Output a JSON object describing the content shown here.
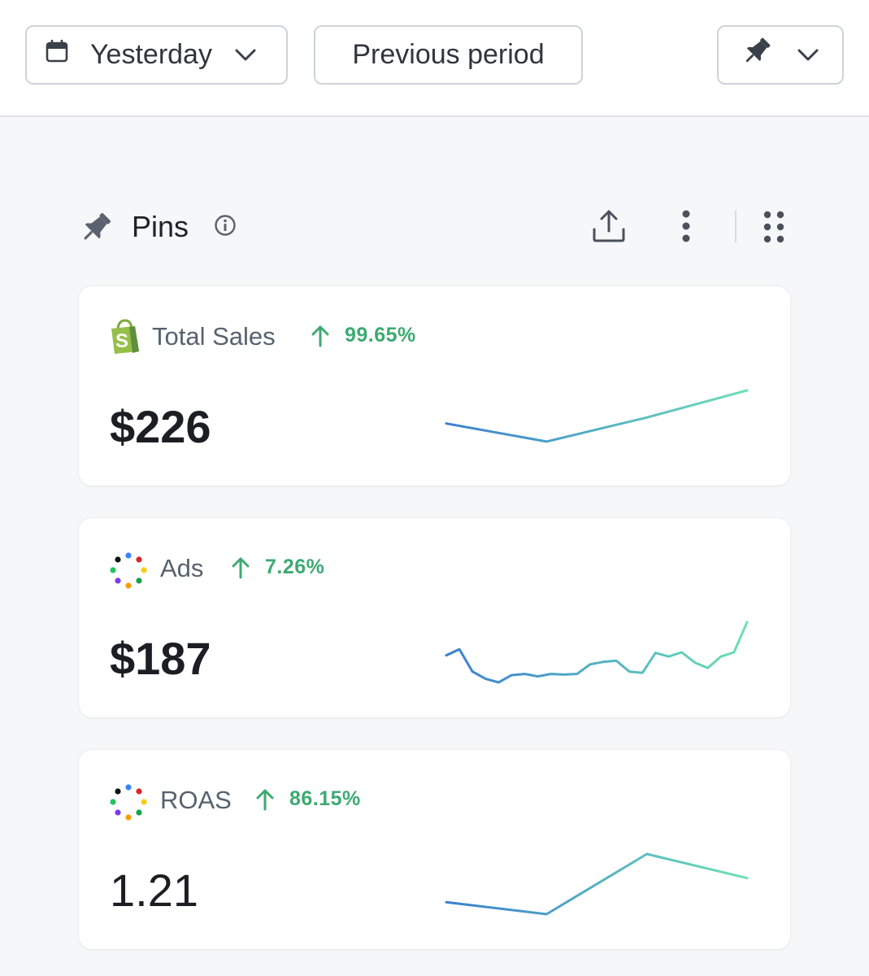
{
  "toolbar": {
    "date_range": {
      "label": "Yesterday",
      "icon": "calendar-icon"
    },
    "compare_label": "Previous period",
    "pin_menu_icon": "pin-icon"
  },
  "section": {
    "title": "Pins",
    "icons": [
      "pin-icon",
      "info-icon",
      "upload-icon",
      "more-vertical-icon",
      "drag-grip-icon"
    ]
  },
  "colors": {
    "positive": "#3daa72",
    "spark_start": "#3b7fd1",
    "spark_end": "#6ee0b5"
  },
  "cards": [
    {
      "name": "Total Sales",
      "source_icon": "shopify-icon",
      "change": "99.65%",
      "direction": "up",
      "value": "$226",
      "spark": [
        0.45,
        0.15,
        0.55,
        1.0
      ]
    },
    {
      "name": "Ads",
      "source_icon": "ads-dots-icon",
      "change": "7.26%",
      "direction": "up",
      "value": "$187",
      "spark": [
        0.45,
        0.55,
        0.18,
        0.06,
        0.0,
        0.12,
        0.14,
        0.1,
        0.14,
        0.13,
        0.14,
        0.3,
        0.34,
        0.36,
        0.18,
        0.16,
        0.49,
        0.43,
        0.5,
        0.33,
        0.24,
        0.43,
        0.5,
        1.0
      ]
    },
    {
      "name": "ROAS",
      "source_icon": "ads-dots-icon",
      "change": "86.15%",
      "direction": "up",
      "value": "1.21",
      "spark": [
        0.2,
        0.0,
        1.0,
        0.6
      ]
    }
  ]
}
